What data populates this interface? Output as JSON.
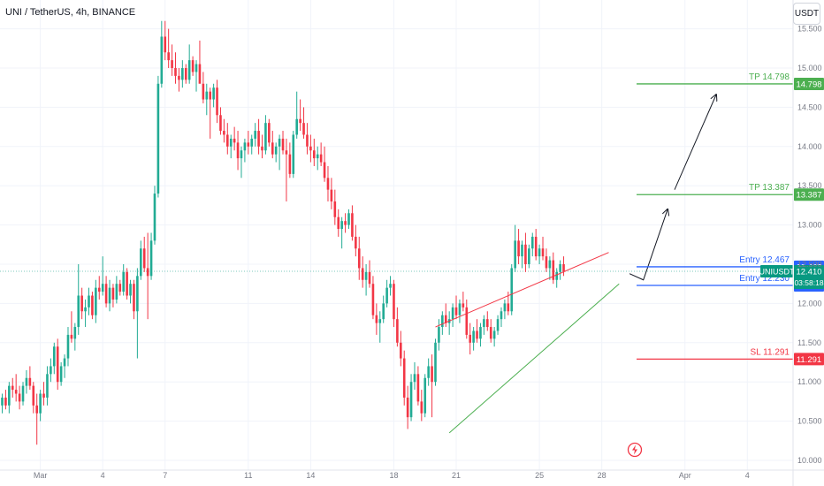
{
  "header": {
    "title": "UNI / TetherUS, 4h, BINANCE",
    "currency": "USDT"
  },
  "colors": {
    "up": "#22ab94",
    "down": "#f23645",
    "tp": "#4caf50",
    "sl": "#f23645",
    "entry": "#2962ff",
    "last_price_badge": "#089981",
    "grid": "#f0f3fa",
    "axis_text": "#787b86"
  },
  "chart_data": {
    "type": "candlestick",
    "symbol": "UNI / TetherUS",
    "interval": "4h",
    "exchange": "BINANCE",
    "ylim": [
      10.0,
      15.5
    ],
    "y_ticks": [
      "15.500",
      "15.000",
      "14.500",
      "14.000",
      "13.500",
      "13.000",
      "12.500",
      "12.000",
      "11.500",
      "11.000",
      "10.500",
      "10.000"
    ],
    "y_tick_values": [
      15.5,
      15.0,
      14.5,
      14.0,
      13.5,
      13.0,
      12.5,
      12.0,
      11.5,
      11.0,
      10.5,
      10.0
    ],
    "x_ticks": [
      {
        "label": "Mar",
        "bar": 11
      },
      {
        "label": "4",
        "bar": 29
      },
      {
        "label": "7",
        "bar": 47
      },
      {
        "label": "11",
        "bar": 71
      },
      {
        "label": "14",
        "bar": 89
      },
      {
        "label": "18",
        "bar": 113
      },
      {
        "label": "21",
        "bar": 131
      },
      {
        "label": "25",
        "bar": 155
      },
      {
        "label": "28",
        "bar": 173
      },
      {
        "label": "Apr",
        "bar": 197
      },
      {
        "label": "4",
        "bar": 215
      }
    ],
    "candles_ohlc": [
      [
        10.7,
        10.85,
        10.6,
        10.8
      ],
      [
        10.8,
        10.9,
        10.65,
        10.7
      ],
      [
        10.7,
        11.0,
        10.6,
        10.95
      ],
      [
        10.95,
        11.05,
        10.8,
        10.9
      ],
      [
        10.9,
        11.1,
        10.75,
        10.85
      ],
      [
        10.85,
        10.95,
        10.65,
        10.75
      ],
      [
        10.75,
        11.0,
        10.7,
        10.95
      ],
      [
        10.95,
        11.15,
        10.85,
        11.05
      ],
      [
        11.05,
        11.2,
        10.9,
        10.95
      ],
      [
        10.95,
        11.0,
        10.6,
        10.7
      ],
      [
        10.7,
        10.85,
        10.2,
        10.6
      ],
      [
        10.6,
        10.9,
        10.5,
        10.85
      ],
      [
        10.85,
        11.0,
        10.7,
        10.8
      ],
      [
        10.8,
        11.2,
        10.7,
        11.1
      ],
      [
        11.1,
        11.3,
        11.0,
        11.2
      ],
      [
        11.2,
        11.5,
        11.1,
        11.45
      ],
      [
        11.45,
        11.55,
        10.9,
        11.0
      ],
      [
        11.0,
        11.25,
        10.95,
        11.2
      ],
      [
        11.2,
        11.35,
        11.05,
        11.3
      ],
      [
        11.3,
        11.7,
        11.2,
        11.6
      ],
      [
        11.6,
        11.9,
        11.5,
        11.55
      ],
      [
        11.55,
        11.75,
        11.4,
        11.7
      ],
      [
        11.7,
        12.5,
        11.6,
        12.1
      ],
      [
        12.1,
        12.2,
        11.8,
        11.9
      ],
      [
        11.9,
        12.05,
        11.7,
        11.95
      ],
      [
        11.95,
        12.2,
        11.85,
        12.1
      ],
      [
        12.1,
        12.15,
        11.8,
        11.85
      ],
      [
        11.85,
        12.3,
        11.75,
        12.2
      ],
      [
        12.2,
        12.35,
        12.05,
        12.15
      ],
      [
        12.15,
        12.6,
        12.1,
        12.25
      ],
      [
        12.25,
        12.35,
        11.95,
        12.0
      ],
      [
        12.0,
        12.3,
        11.9,
        12.2
      ],
      [
        12.2,
        12.25,
        11.95,
        12.05
      ],
      [
        12.05,
        12.35,
        12.0,
        12.25
      ],
      [
        12.25,
        12.3,
        12.1,
        12.15
      ],
      [
        12.15,
        12.5,
        12.1,
        12.4
      ],
      [
        12.4,
        12.45,
        12.05,
        12.1
      ],
      [
        12.1,
        12.3,
        12.0,
        12.25
      ],
      [
        12.25,
        12.3,
        11.8,
        11.9
      ],
      [
        11.9,
        12.45,
        11.3,
        12.35
      ],
      [
        12.35,
        12.8,
        12.3,
        12.7
      ],
      [
        12.7,
        12.85,
        12.4,
        12.45
      ],
      [
        12.45,
        12.9,
        11.8,
        12.35
      ],
      [
        12.35,
        12.9,
        12.3,
        12.8
      ],
      [
        12.8,
        13.5,
        12.75,
        13.4
      ],
      [
        13.4,
        14.9,
        13.35,
        14.8
      ],
      [
        14.8,
        15.6,
        14.75,
        15.4
      ],
      [
        15.4,
        15.6,
        15.1,
        15.2
      ],
      [
        15.2,
        15.5,
        15.0,
        15.1
      ],
      [
        15.1,
        15.3,
        14.9,
        15.0
      ],
      [
        15.0,
        15.2,
        14.8,
        14.9
      ],
      [
        14.9,
        15.0,
        14.7,
        14.85
      ],
      [
        14.85,
        15.1,
        14.75,
        15.0
      ],
      [
        15.0,
        15.05,
        14.8,
        14.85
      ],
      [
        14.85,
        15.3,
        14.8,
        15.1
      ],
      [
        15.1,
        15.15,
        14.9,
        14.95
      ],
      [
        14.95,
        15.1,
        14.7,
        15.05
      ],
      [
        15.05,
        15.35,
        14.9,
        14.8
      ],
      [
        14.8,
        14.95,
        14.55,
        14.6
      ],
      [
        14.6,
        14.8,
        14.4,
        14.7
      ],
      [
        14.7,
        14.75,
        14.1,
        14.6
      ],
      [
        14.6,
        14.8,
        14.5,
        14.75
      ],
      [
        14.75,
        14.85,
        14.3,
        14.4
      ],
      [
        14.4,
        14.5,
        14.15,
        14.2
      ],
      [
        14.2,
        14.35,
        14.05,
        14.15
      ],
      [
        14.15,
        14.3,
        13.9,
        14.0
      ],
      [
        14.0,
        14.15,
        13.85,
        14.1
      ],
      [
        14.1,
        14.25,
        13.95,
        14.05
      ],
      [
        14.05,
        14.2,
        13.7,
        13.85
      ],
      [
        13.85,
        14.0,
        13.6,
        13.95
      ],
      [
        13.95,
        14.1,
        13.8,
        14.05
      ],
      [
        14.05,
        14.2,
        13.9,
        14.0
      ],
      [
        14.0,
        14.15,
        13.9,
        14.1
      ],
      [
        14.1,
        14.3,
        14.0,
        14.2
      ],
      [
        14.2,
        14.35,
        13.9,
        14.0
      ],
      [
        14.0,
        14.15,
        13.85,
        13.95
      ],
      [
        13.95,
        14.4,
        13.9,
        14.3
      ],
      [
        14.3,
        14.35,
        14.0,
        14.05
      ],
      [
        14.05,
        14.2,
        13.85,
        13.9
      ],
      [
        13.9,
        14.05,
        13.8,
        14.0
      ],
      [
        14.0,
        14.15,
        13.7,
        14.1
      ],
      [
        14.1,
        14.2,
        13.9,
        13.95
      ],
      [
        13.95,
        14.1,
        13.3,
        13.9
      ],
      [
        13.9,
        14.05,
        13.6,
        13.65
      ],
      [
        13.65,
        14.2,
        13.6,
        14.15
      ],
      [
        14.15,
        14.7,
        14.1,
        14.35
      ],
      [
        14.35,
        14.6,
        14.2,
        14.3
      ],
      [
        14.3,
        14.5,
        14.1,
        14.15
      ],
      [
        14.15,
        14.3,
        13.9,
        14.0
      ],
      [
        14.0,
        14.15,
        13.8,
        13.95
      ],
      [
        13.95,
        14.1,
        13.75,
        13.85
      ],
      [
        13.85,
        14.0,
        13.7,
        13.9
      ],
      [
        13.9,
        14.05,
        13.75,
        13.8
      ],
      [
        13.8,
        14.0,
        13.55,
        13.6
      ],
      [
        13.6,
        13.75,
        13.3,
        13.45
      ],
      [
        13.45,
        13.6,
        13.2,
        13.3
      ],
      [
        13.3,
        13.45,
        13.0,
        13.1
      ],
      [
        13.1,
        13.2,
        12.85,
        12.95
      ],
      [
        12.95,
        13.1,
        12.7,
        13.05
      ],
      [
        13.05,
        13.15,
        12.9,
        13.0
      ],
      [
        13.0,
        13.2,
        12.95,
        13.15
      ],
      [
        13.15,
        13.25,
        12.8,
        12.85
      ],
      [
        12.85,
        13.0,
        12.6,
        12.7
      ],
      [
        12.7,
        12.85,
        12.3,
        12.45
      ],
      [
        12.45,
        12.6,
        12.2,
        12.3
      ],
      [
        12.3,
        12.5,
        12.1,
        12.4
      ],
      [
        12.4,
        12.55,
        12.2,
        12.25
      ],
      [
        12.25,
        12.35,
        11.8,
        11.85
      ],
      [
        11.85,
        12.0,
        11.6,
        11.75
      ],
      [
        11.75,
        11.9,
        11.5,
        11.8
      ],
      [
        11.8,
        12.1,
        11.75,
        12.0
      ],
      [
        12.0,
        12.3,
        11.95,
        12.2
      ],
      [
        12.2,
        12.35,
        12.1,
        12.25
      ],
      [
        12.25,
        12.3,
        11.7,
        11.8
      ],
      [
        11.8,
        11.95,
        11.45,
        11.5
      ],
      [
        11.5,
        11.65,
        11.2,
        11.3
      ],
      [
        11.3,
        11.4,
        10.7,
        10.8
      ],
      [
        10.8,
        10.95,
        10.4,
        10.55
      ],
      [
        10.55,
        11.1,
        10.5,
        11.0
      ],
      [
        11.0,
        11.25,
        10.9,
        11.1
      ],
      [
        11.1,
        11.2,
        10.7,
        10.75
      ],
      [
        10.75,
        10.9,
        10.5,
        10.6
      ],
      [
        10.6,
        11.1,
        10.55,
        11.05
      ],
      [
        11.05,
        11.3,
        10.95,
        11.2
      ],
      [
        11.2,
        11.35,
        10.55,
        11.0
      ],
      [
        11.0,
        11.55,
        10.95,
        11.5
      ],
      [
        11.5,
        11.8,
        11.4,
        11.7
      ],
      [
        11.7,
        11.9,
        11.6,
        11.85
      ],
      [
        11.85,
        12.0,
        11.7,
        11.75
      ],
      [
        11.75,
        11.9,
        11.6,
        11.8
      ],
      [
        11.8,
        12.0,
        11.7,
        11.95
      ],
      [
        11.95,
        12.1,
        11.8,
        11.85
      ],
      [
        11.85,
        12.05,
        11.75,
        12.0
      ],
      [
        12.0,
        12.15,
        11.9,
        11.95
      ],
      [
        11.95,
        12.05,
        11.55,
        11.6
      ],
      [
        11.6,
        11.75,
        11.35,
        11.5
      ],
      [
        11.5,
        11.7,
        11.4,
        11.65
      ],
      [
        11.65,
        11.8,
        11.5,
        11.55
      ],
      [
        11.55,
        11.75,
        11.45,
        11.7
      ],
      [
        11.7,
        11.85,
        11.6,
        11.8
      ],
      [
        11.8,
        11.9,
        11.65,
        11.7
      ],
      [
        11.7,
        11.8,
        11.5,
        11.55
      ],
      [
        11.55,
        11.7,
        11.45,
        11.65
      ],
      [
        11.65,
        11.85,
        11.6,
        11.8
      ],
      [
        11.8,
        11.95,
        11.7,
        11.9
      ],
      [
        11.9,
        12.05,
        11.8,
        12.0
      ],
      [
        12.0,
        12.15,
        11.85,
        11.9
      ],
      [
        11.9,
        12.5,
        11.85,
        12.45
      ],
      [
        12.45,
        13.0,
        12.4,
        12.8
      ],
      [
        12.8,
        12.95,
        12.5,
        12.6
      ],
      [
        12.6,
        12.8,
        12.45,
        12.75
      ],
      [
        12.75,
        12.9,
        12.4,
        12.5
      ],
      [
        12.5,
        12.75,
        12.45,
        12.7
      ],
      [
        12.7,
        12.9,
        12.6,
        12.85
      ],
      [
        12.85,
        12.95,
        12.55,
        12.6
      ],
      [
        12.6,
        12.75,
        12.5,
        12.7
      ],
      [
        12.7,
        12.85,
        12.55,
        12.6
      ],
      [
        12.6,
        12.7,
        12.4,
        12.45
      ],
      [
        12.45,
        12.6,
        12.3,
        12.55
      ],
      [
        12.55,
        12.65,
        12.25,
        12.3
      ],
      [
        12.3,
        12.45,
        12.2,
        12.4
      ],
      [
        12.4,
        12.55,
        12.3,
        12.5
      ],
      [
        12.5,
        12.6,
        12.35,
        12.41
      ]
    ],
    "channel_lines": [
      {
        "color": "#f23645",
        "from": {
          "bar": 125,
          "price": 11.7
        },
        "to": {
          "bar": 175,
          "price": 12.65
        }
      },
      {
        "color": "#4caf50",
        "from": {
          "bar": 129,
          "price": 10.35
        },
        "to": {
          "bar": 178,
          "price": 12.25
        }
      }
    ],
    "arrows": [
      {
        "points": [
          {
            "bar": 181,
            "price": 12.38
          },
          {
            "bar": 185,
            "price": 12.3
          },
          {
            "bar": 192,
            "price": 13.2
          }
        ]
      },
      {
        "points": [
          {
            "bar": 194,
            "price": 13.45
          },
          {
            "bar": 206,
            "price": 14.66
          }
        ]
      }
    ],
    "levels": [
      {
        "label": "TP 14.798",
        "price": 14.798,
        "badge": "14.798",
        "color": "#4caf50"
      },
      {
        "label": "TP 13.387",
        "price": 13.387,
        "badge": "13.387",
        "color": "#4caf50"
      },
      {
        "label": "Entry 12.467",
        "price": 12.467,
        "badge": "12.467",
        "color": "#2962ff"
      },
      {
        "label": "Entry 12.230",
        "price": 12.23,
        "badge": "12.230",
        "color": "#2962ff"
      },
      {
        "label": "SL 11.291",
        "price": 11.291,
        "badge": "11.291",
        "color": "#f23645"
      }
    ],
    "last_price": {
      "symbol": "UNIUSDT",
      "value": "12.410",
      "countdown": "03:58:18",
      "price": 12.41
    }
  }
}
